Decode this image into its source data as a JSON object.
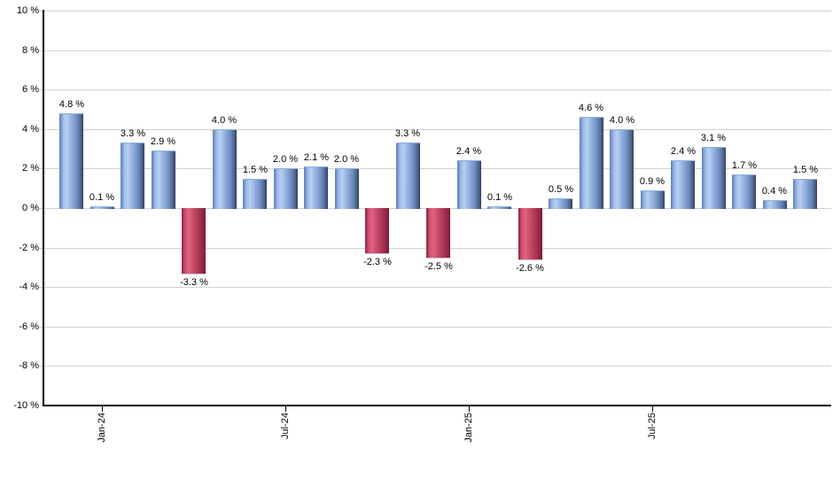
{
  "chart_data": {
    "type": "bar",
    "title": "",
    "xlabel": "",
    "ylabel": "",
    "grid": true,
    "ylim": [
      -10,
      10
    ],
    "y_ticks": [
      {
        "value": 10,
        "label": "10 %"
      },
      {
        "value": 8,
        "label": "8 %"
      },
      {
        "value": 6,
        "label": "6 %"
      },
      {
        "value": 4,
        "label": "4 %"
      },
      {
        "value": 2,
        "label": "2 %"
      },
      {
        "value": 0,
        "label": "0 %"
      },
      {
        "value": -2,
        "label": "-2 %"
      },
      {
        "value": -4,
        "label": "-4 %"
      },
      {
        "value": -6,
        "label": "-6 %"
      },
      {
        "value": -8,
        "label": "-8 %"
      },
      {
        "value": -10,
        "label": "-10 %"
      }
    ],
    "x_ticks": [
      {
        "bar_index": 1,
        "label": "Jan-24"
      },
      {
        "bar_index": 7,
        "label": "Jul-24"
      },
      {
        "bar_index": 13,
        "label": "Jan-25"
      },
      {
        "bar_index": 19,
        "label": "Jul-25"
      }
    ],
    "values": [
      4.8,
      0.1,
      3.3,
      2.9,
      -3.3,
      4.0,
      1.5,
      2.0,
      2.1,
      2.0,
      -2.3,
      3.3,
      -2.5,
      2.4,
      0.1,
      -2.6,
      0.5,
      4.6,
      4.0,
      0.9,
      2.4,
      3.1,
      1.7,
      0.4,
      1.5
    ],
    "value_labels": [
      "4.8 %",
      "0.1 %",
      "3.3 %",
      "2.9 %",
      "-3.3 %",
      "4.0 %",
      "1.5 %",
      "2.0 %",
      "2.1 %",
      "2.0 %",
      "-2.3 %",
      "3.3 %",
      "-2.5 %",
      "2.4 %",
      "0.1 %",
      "-2.6 %",
      "0.5 %",
      "4.6 %",
      "4.0 %",
      "0.9 %",
      "2.4 %",
      "3.1 %",
      "1.7 %",
      "0.4 %",
      "1.5 %"
    ],
    "colors": {
      "positive_bar": "#88a9dc",
      "negative_bar": "#c74a68",
      "gridline": "#d2d2d2",
      "axis": "#000000",
      "label_text": "#000000"
    },
    "legend": null
  }
}
